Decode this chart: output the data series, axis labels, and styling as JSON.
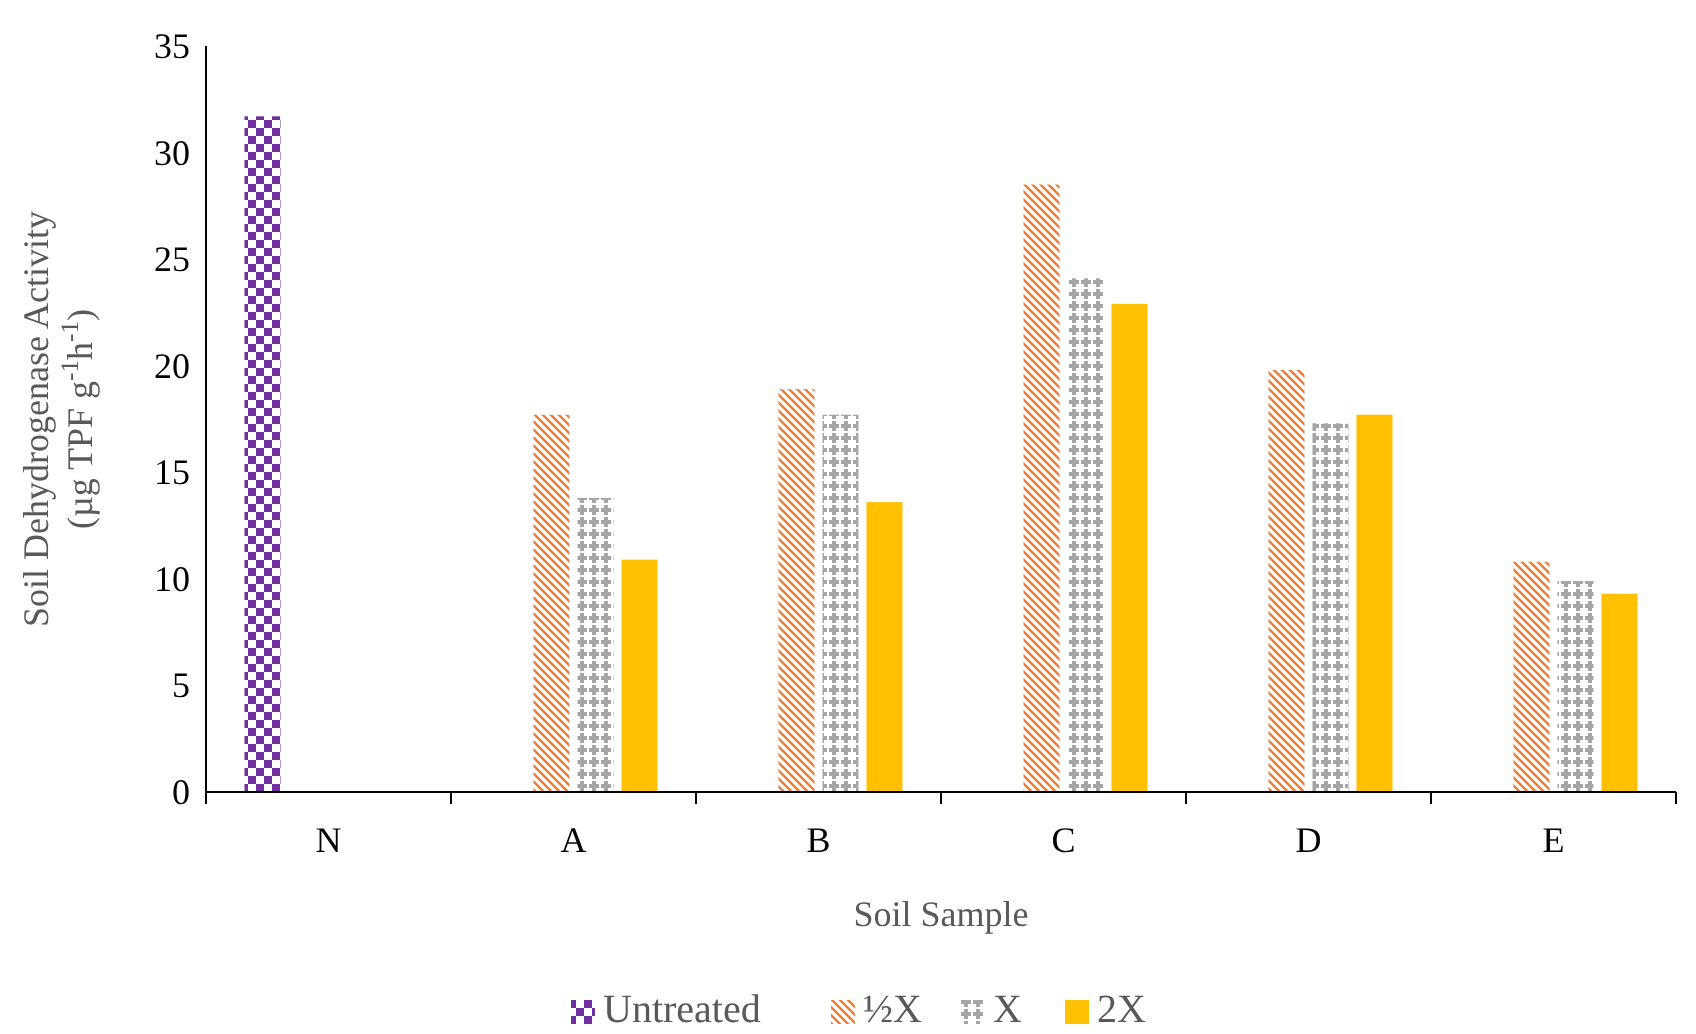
{
  "chart_data": {
    "type": "bar",
    "xlabel": "Soil Sample",
    "ylabel": "Soil Dehydrogenase Activity (µg TPF g$^{-1}$h$^{-1}$)",
    "categories": [
      "N",
      "A",
      "B",
      "C",
      "D",
      "E"
    ],
    "series": [
      {
        "name": "Untreated",
        "color": "#7030a0",
        "values": [
          31.7,
          null,
          null,
          null,
          null,
          null
        ]
      },
      {
        "name": "½X",
        "color": "#ed7d31",
        "values": [
          null,
          17.7,
          18.9,
          28.5,
          19.8,
          10.8
        ]
      },
      {
        "name": "X",
        "color": "#a5a5a5",
        "values": [
          null,
          13.8,
          17.7,
          24.1,
          17.3,
          9.9
        ]
      },
      {
        "name": "2X",
        "color": "#ffc000",
        "values": [
          null,
          10.9,
          13.6,
          22.9,
          17.7,
          9.3
        ]
      }
    ],
    "ylim": [
      0,
      35
    ],
    "yticks": [
      0,
      5,
      10,
      15,
      20,
      25,
      30,
      35
    ],
    "grid": false,
    "legend": "bottom"
  }
}
